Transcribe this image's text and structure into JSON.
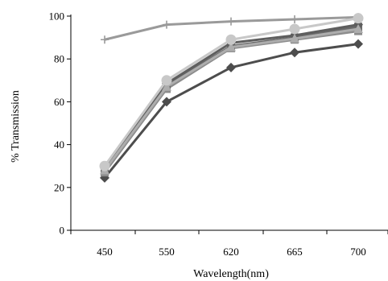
{
  "chart_data": {
    "type": "line",
    "xlabel": "Wavelength(nm)",
    "ylabel": "% Transmission",
    "categories": [
      "450",
      "550",
      "620",
      "665",
      "700"
    ],
    "ylim": [
      0,
      100
    ],
    "yticks": [
      0,
      20,
      40,
      60,
      80,
      100
    ],
    "grid": false,
    "legend": "none",
    "series": [
      {
        "values": [
          89,
          96,
          97.5,
          98.5,
          99.5
        ],
        "color": "#9a9a9a",
        "marker": "plus"
      },
      {
        "values": [
          24.5,
          60,
          76,
          83,
          87
        ],
        "color": "#4d4d4d",
        "marker": "diamond"
      },
      {
        "values": [
          27,
          66,
          85,
          89,
          93
        ],
        "color": "#8c8c8c",
        "marker": "square"
      },
      {
        "values": [
          28.5,
          67.5,
          86,
          90,
          95
        ],
        "color": "#6a6a6a",
        "marker": "square"
      },
      {
        "values": [
          29.5,
          68.5,
          87.5,
          91,
          96
        ],
        "color": "#5e5e5e",
        "marker": "diamond"
      },
      {
        "values": [
          28,
          67,
          85.5,
          89.5,
          94
        ],
        "color": "#adadad",
        "marker": "triangle"
      },
      {
        "values": [
          30,
          70,
          89,
          94,
          99
        ],
        "color": "#c8c8c8",
        "marker": "circle"
      }
    ]
  }
}
